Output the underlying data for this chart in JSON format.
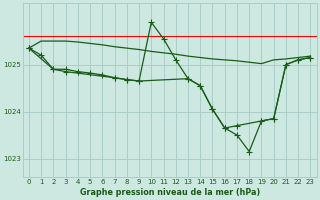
{
  "background_color": "#cce8e0",
  "grid_color": "#aacfc8",
  "line_color": "#1a5c1a",
  "title": "Graphe pression niveau de la mer (hPa)",
  "xlim": [
    -0.5,
    23.5
  ],
  "ylim": [
    1022.6,
    1026.3
  ],
  "yticks": [
    1023,
    1024,
    1025
  ],
  "xticks": [
    0,
    1,
    2,
    3,
    4,
    5,
    6,
    7,
    8,
    9,
    10,
    11,
    12,
    13,
    14,
    15,
    16,
    17,
    18,
    19,
    20,
    21,
    22,
    23
  ],
  "red_line_y": 1025.6,
  "line1_x": [
    0,
    1,
    2,
    3,
    4,
    5,
    6,
    7,
    8,
    9,
    10,
    11,
    12,
    13,
    14,
    15,
    16,
    17,
    18,
    19,
    20,
    21,
    22,
    23
  ],
  "line1_y": [
    1025.35,
    1025.5,
    1025.5,
    1025.5,
    1025.48,
    1025.45,
    1025.42,
    1025.38,
    1025.35,
    1025.32,
    1025.28,
    1025.25,
    1025.22,
    1025.18,
    1025.15,
    1025.12,
    1025.1,
    1025.08,
    1025.05,
    1025.02,
    1025.1,
    1025.12,
    1025.15,
    1025.18
  ],
  "line2_x": [
    0,
    1,
    2,
    3,
    4,
    5,
    6,
    7,
    8,
    9,
    10,
    11,
    12,
    13,
    14,
    15,
    16,
    17,
    18,
    19,
    20,
    21,
    22,
    23
  ],
  "line2_y": [
    1025.35,
    1025.2,
    1024.9,
    1024.9,
    1024.85,
    1024.82,
    1024.78,
    1024.72,
    1024.68,
    1024.65,
    1025.9,
    1025.55,
    1025.1,
    1024.7,
    1024.55,
    1024.05,
    1023.65,
    1023.5,
    1023.15,
    1023.8,
    1023.85,
    1025.0,
    1025.1,
    1025.15
  ],
  "line3_x": [
    0,
    2,
    3,
    7,
    8,
    9,
    13,
    14,
    15,
    16,
    17,
    19,
    20,
    21,
    22,
    23
  ],
  "line3_y": [
    1025.35,
    1024.9,
    1024.85,
    1024.72,
    1024.68,
    1024.65,
    1024.7,
    1024.55,
    1024.05,
    1023.65,
    1023.7,
    1023.8,
    1023.85,
    1025.0,
    1025.1,
    1025.15
  ]
}
